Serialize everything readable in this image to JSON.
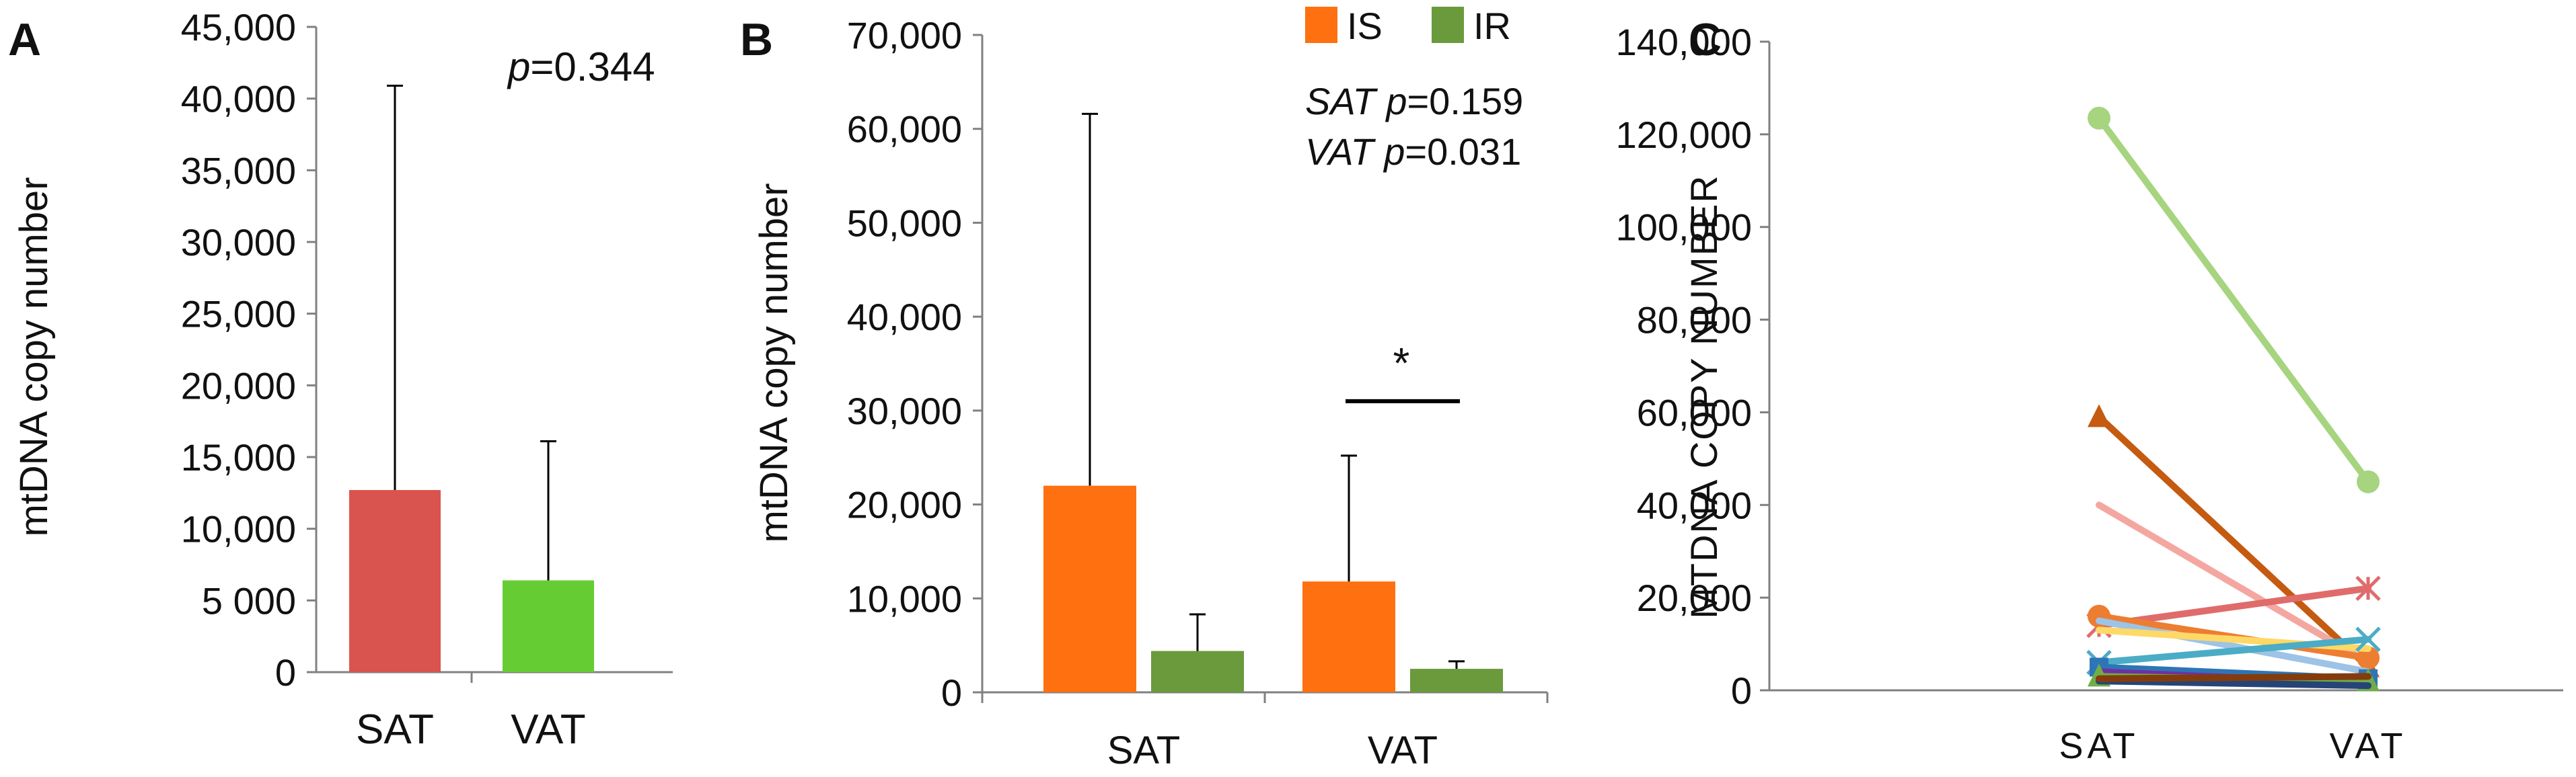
{
  "chart_data": [
    {
      "panel_label": "A",
      "type": "bar",
      "categories": [
        "SAT",
        "VAT"
      ],
      "values": [
        12700,
        6400
      ],
      "error_upper": [
        40900,
        16100
      ],
      "colors": [
        "#d9534f",
        "#66cc33"
      ],
      "ylabel": "mtDNA copy number",
      "ylim": [
        0,
        45000
      ],
      "ticks": [
        0,
        5000,
        10000,
        15000,
        20000,
        25000,
        30000,
        35000,
        40000,
        45000
      ],
      "tick_labels": [
        "0",
        "5 000",
        "10,000",
        "15,000",
        "20,000",
        "25,000",
        "30,000",
        "35,000",
        "40,000",
        "45,000"
      ],
      "annotation": {
        "prefix": "p",
        "text": "=0.344"
      }
    },
    {
      "panel_label": "B",
      "type": "bar",
      "categories": [
        "SAT",
        "VAT"
      ],
      "series": [
        {
          "name": "IS",
          "color": "#ff7010",
          "values": [
            22000,
            11800
          ],
          "error_upper": [
            61600,
            25200
          ]
        },
        {
          "name": "IR",
          "color": "#6a9a3c",
          "values": [
            4400,
            2500
          ],
          "error_upper": [
            8300,
            3300
          ]
        }
      ],
      "ylabel": "mtDNA copy number",
      "ylim": [
        0,
        70000
      ],
      "ticks": [
        0,
        10000,
        20000,
        30000,
        40000,
        50000,
        60000,
        70000
      ],
      "tick_labels": [
        "0",
        "10,000",
        "20,000",
        "30,000",
        "40,000",
        "50,000",
        "60,000",
        "70,000"
      ],
      "annotations": [
        {
          "italic": "SAT p",
          "text": "=0.159"
        },
        {
          "italic": "VAT p",
          "text": "=0.031"
        }
      ],
      "significance": {
        "symbol": "*",
        "group": "VAT",
        "level": 31000
      }
    },
    {
      "panel_label": "C",
      "type": "line",
      "categories": [
        "SAT",
        "VAT"
      ],
      "ylabel": "MTDNA COPY NUMBER",
      "ylim": [
        0,
        140000
      ],
      "ticks": [
        0,
        20000,
        40000,
        60000,
        80000,
        100000,
        120000,
        140000
      ],
      "tick_labels": [
        "0",
        "20,000",
        "40,000",
        "60,000",
        "80,000",
        "100,000",
        "120,000",
        "140,000"
      ],
      "series": [
        {
          "color": "#a6d47f",
          "marker": "circle",
          "values": [
            123500,
            45000
          ]
        },
        {
          "color": "#c55a11",
          "marker": "triangle",
          "values": [
            59000,
            5000
          ]
        },
        {
          "color": "#f4a7a0",
          "marker": "none",
          "values": [
            40000,
            6000
          ]
        },
        {
          "color": "#e06b6b",
          "marker": "x",
          "values": [
            14000,
            22000
          ]
        },
        {
          "color": "#ed7d31",
          "marker": "circle",
          "values": [
            16000,
            7000
          ]
        },
        {
          "color": "#9dc3e6",
          "marker": "none",
          "values": [
            15000,
            4000
          ]
        },
        {
          "color": "#ffd966",
          "marker": "none",
          "values": [
            13000,
            9000
          ]
        },
        {
          "color": "#4bacc6",
          "marker": "cross",
          "values": [
            6000,
            11000
          ]
        },
        {
          "color": "#2e75b6",
          "marker": "square",
          "values": [
            5000,
            2500
          ]
        },
        {
          "color": "#7030a0",
          "marker": "none",
          "values": [
            4000,
            1500
          ]
        },
        {
          "color": "#70ad47",
          "marker": "triangle",
          "values": [
            3000,
            2000
          ]
        },
        {
          "color": "#264478",
          "marker": "none",
          "values": [
            2000,
            1000
          ]
        },
        {
          "color": "#843c0c",
          "marker": "none",
          "values": [
            2500,
            3000
          ]
        }
      ]
    }
  ]
}
